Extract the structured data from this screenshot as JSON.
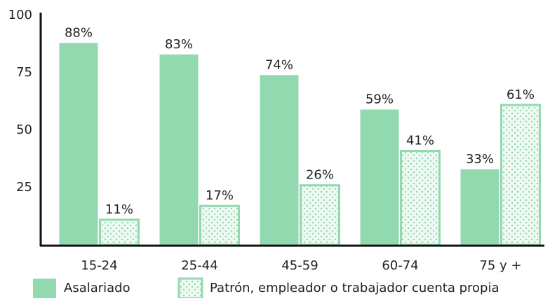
{
  "chart_data": {
    "type": "bar",
    "categories": [
      "15-24",
      "25-44",
      "45-59",
      "60-74",
      "75 y +"
    ],
    "series": [
      {
        "name": "Asalariado",
        "color": "#92d9b0",
        "pattern": false,
        "values": [
          88,
          83,
          74,
          59,
          33
        ],
        "value_labels": [
          "88%",
          "83%",
          "74%",
          "59%",
          "33%"
        ]
      },
      {
        "name": "Patrón, empleador o trabajador cuenta propia",
        "color": "#92d9b0",
        "pattern": true,
        "values": [
          11,
          17,
          26,
          41,
          61
        ],
        "value_labels": [
          "11%",
          "17%",
          "26%",
          "41%",
          "61%"
        ]
      }
    ],
    "ylim": [
      0,
      100
    ],
    "yticks": [
      25,
      50,
      75,
      100
    ],
    "grid": false
  }
}
